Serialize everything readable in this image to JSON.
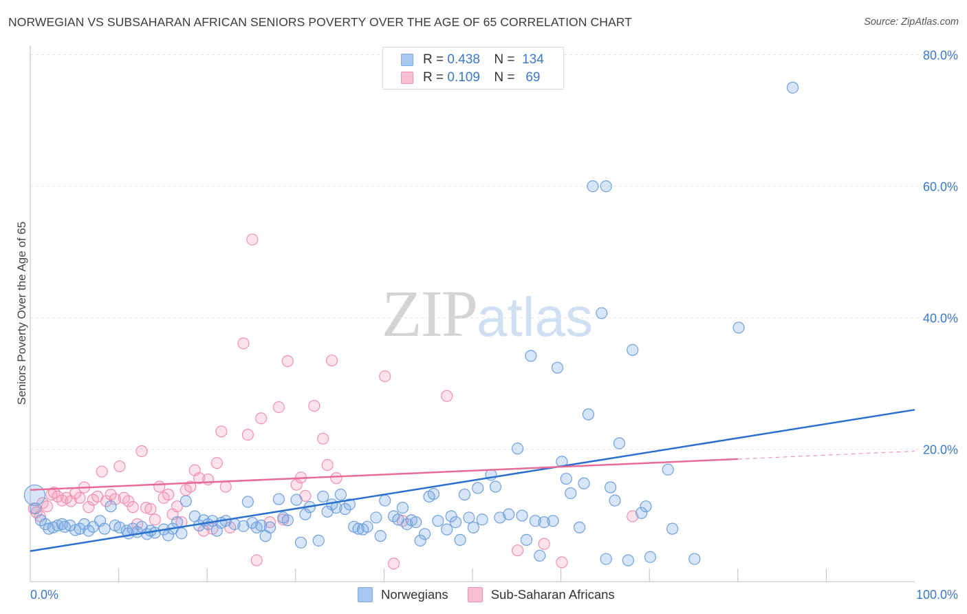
{
  "header": {
    "title": "NORWEGIAN VS SUBSAHARAN AFRICAN SENIORS POVERTY OVER THE AGE OF 65 CORRELATION CHART",
    "source": "Source: ZipAtlas.com"
  },
  "watermark": {
    "zip": "ZIP",
    "atlas": "atlas"
  },
  "legend": {
    "rows": [
      {
        "r_label": "R =",
        "r_value": "0.438",
        "n_label": "N =",
        "n_value": "134",
        "color": "#a8c8f0",
        "border": "#7aa8e0"
      },
      {
        "r_label": "R =",
        "r_value": "0.109",
        "n_label": "N =",
        "n_value": "69",
        "color": "#f8c0d0",
        "border": "#f090b0"
      }
    ]
  },
  "bottom_legend": [
    {
      "label": "Norwegians",
      "color": "#a8c8f0",
      "border": "#7aa8e0"
    },
    {
      "label": "Sub-Saharan Africans",
      "color": "#f8c0d0",
      "border": "#f090b0"
    }
  ],
  "colors": {
    "blue_fill": "rgba(120,168,230,0.30)",
    "blue_stroke": "#6fa0dc",
    "blue_line": "#2a6fd0",
    "pink_fill": "rgba(245,160,185,0.30)",
    "pink_stroke": "#ef90ae",
    "pink_line": "#e86a97",
    "tick_label": "#3a78c8",
    "grid": "#e2e2e2"
  },
  "chart_data": {
    "type": "scatter",
    "title": "NORWEGIAN VS SUBSAHARAN AFRICAN SENIORS POVERTY OVER THE AGE OF 65 CORRELATION CHART",
    "xlabel": "",
    "ylabel": "Seniors Poverty Over the Age of 65",
    "xlim": [
      0,
      100
    ],
    "ylim": [
      0,
      80
    ],
    "x_tick_labels": [
      {
        "value": 0,
        "label": "0.0%"
      },
      {
        "value": 100,
        "label": "100.0%"
      }
    ],
    "y_tick_labels": [
      {
        "value": 20,
        "label": "20.0%"
      },
      {
        "value": 40,
        "label": "40.0%"
      },
      {
        "value": 60,
        "label": "60.0%"
      },
      {
        "value": 80,
        "label": "80.0%"
      }
    ],
    "series": [
      {
        "name": "Norwegians",
        "trend": {
          "x0": 0,
          "y0": 4.5,
          "x1": 100,
          "y1": 26
        },
        "points": [
          [
            0.5,
            13
          ],
          [
            0.6,
            11
          ],
          [
            1.2,
            9.2
          ],
          [
            1.7,
            8.6
          ],
          [
            2.1,
            7.9
          ],
          [
            2.6,
            8.1
          ],
          [
            3.1,
            8.4
          ],
          [
            3.6,
            8.6
          ],
          [
            3.9,
            8.2
          ],
          [
            4.5,
            8.4
          ],
          [
            5.1,
            7.7
          ],
          [
            5.6,
            7.9
          ],
          [
            6.1,
            8.6
          ],
          [
            6.6,
            7.6
          ],
          [
            7.1,
            8.2
          ],
          [
            7.9,
            9.1
          ],
          [
            8.4,
            7.9
          ],
          [
            9.1,
            11.3
          ],
          [
            9.6,
            8.4
          ],
          [
            10.1,
            8.1
          ],
          [
            10.9,
            7.6
          ],
          [
            11.1,
            7.2
          ],
          [
            11.6,
            7.9
          ],
          [
            12.1,
            7.4
          ],
          [
            12.6,
            8.2
          ],
          [
            13.2,
            7.1
          ],
          [
            13.6,
            7.6
          ],
          [
            14.1,
            7.3
          ],
          [
            15.1,
            7.8
          ],
          [
            15.6,
            6.9
          ],
          [
            16.1,
            7.9
          ],
          [
            16.6,
            8.9
          ],
          [
            17.1,
            7.2
          ],
          [
            17.6,
            12.1
          ],
          [
            18.6,
            9.8
          ],
          [
            19.1,
            8.4
          ],
          [
            19.6,
            9.2
          ],
          [
            20.1,
            8.6
          ],
          [
            20.6,
            9.1
          ],
          [
            21.1,
            7.6
          ],
          [
            21.6,
            8.8
          ],
          [
            22.1,
            9.1
          ],
          [
            23.1,
            8.6
          ],
          [
            24.1,
            8.3
          ],
          [
            24.6,
            12
          ],
          [
            25.1,
            8.8
          ],
          [
            25.6,
            8.1
          ],
          [
            26.1,
            8.4
          ],
          [
            26.6,
            6.8
          ],
          [
            27.1,
            8.1
          ],
          [
            28.1,
            12.4
          ],
          [
            28.6,
            9.6
          ],
          [
            29.1,
            9.2
          ],
          [
            30.1,
            12.3
          ],
          [
            30.6,
            5.8
          ],
          [
            31.1,
            10.1
          ],
          [
            31.6,
            11.2
          ],
          [
            32.6,
            6.1
          ],
          [
            33.1,
            12.8
          ],
          [
            33.6,
            10.5
          ],
          [
            34.1,
            11.6
          ],
          [
            34.6,
            11.1
          ],
          [
            35.1,
            13.1
          ],
          [
            35.6,
            10.9
          ],
          [
            36.1,
            11.6
          ],
          [
            36.6,
            8.2
          ],
          [
            37.1,
            7.9
          ],
          [
            37.6,
            7.8
          ],
          [
            38.1,
            8.2
          ],
          [
            39.1,
            9.6
          ],
          [
            39.6,
            6.8
          ],
          [
            40.1,
            12.2
          ],
          [
            41.1,
            9.8
          ],
          [
            41.6,
            9.3
          ],
          [
            42.1,
            11.1
          ],
          [
            42.6,
            8.6
          ],
          [
            43.1,
            9.2
          ],
          [
            43.6,
            8.9
          ],
          [
            44.1,
            6.1
          ],
          [
            44.6,
            7.1
          ],
          [
            45.1,
            12.8
          ],
          [
            45.6,
            13.2
          ],
          [
            46.1,
            9.1
          ],
          [
            47.1,
            7.8
          ],
          [
            47.6,
            9.8
          ],
          [
            48.1,
            8.9
          ],
          [
            48.6,
            6.2
          ],
          [
            49.1,
            13.1
          ],
          [
            49.6,
            9.6
          ],
          [
            50.1,
            8.1
          ],
          [
            50.6,
            14.1
          ],
          [
            51.1,
            9.3
          ],
          [
            52.1,
            16.1
          ],
          [
            52.6,
            14.3
          ],
          [
            53.1,
            9.6
          ],
          [
            54.1,
            10.1
          ],
          [
            55.1,
            20.1
          ],
          [
            55.6,
            9.9
          ],
          [
            56.1,
            6.2
          ],
          [
            56.6,
            34.2
          ],
          [
            57.1,
            9.1
          ],
          [
            57.6,
            3.8
          ],
          [
            58.1,
            8.9
          ],
          [
            59.1,
            9.1
          ],
          [
            59.6,
            32.4
          ],
          [
            60.1,
            18.1
          ],
          [
            60.6,
            15.5
          ],
          [
            61.1,
            13.3
          ],
          [
            62.1,
            8.1
          ],
          [
            62.6,
            14.8
          ],
          [
            63.1,
            25.3
          ],
          [
            64.6,
            40.7
          ],
          [
            65.1,
            3.3
          ],
          [
            65.6,
            14.2
          ],
          [
            66.1,
            12.2
          ],
          [
            66.6,
            20.9
          ],
          [
            67.6,
            3.1
          ],
          [
            68.1,
            35.1
          ],
          [
            69.1,
            10.3
          ],
          [
            69.6,
            11.3
          ],
          [
            70.1,
            3.6
          ],
          [
            72.1,
            16.9
          ],
          [
            72.6,
            7.9
          ],
          [
            75.1,
            3.3
          ],
          [
            80.1,
            38.5
          ],
          [
            86.2,
            75
          ]
        ],
        "extra_points": [
          [
            63.6,
            60
          ],
          [
            65.1,
            60
          ]
        ]
      },
      {
        "name": "Sub-Saharan Africans",
        "trend": {
          "x0": 0,
          "y0": 13.8,
          "x1": 80,
          "y1": 18.5,
          "dash_to_x": 100,
          "dash_to_y": 19.7
        },
        "points": [
          [
            0.4,
            11
          ],
          [
            0.7,
            10.4
          ],
          [
            1.1,
            9.8
          ],
          [
            1.4,
            11.8
          ],
          [
            1.9,
            11.3
          ],
          [
            2.4,
            13.1
          ],
          [
            2.7,
            13.4
          ],
          [
            3.1,
            12.8
          ],
          [
            3.6,
            12.2
          ],
          [
            4.1,
            12.6
          ],
          [
            4.6,
            12.1
          ],
          [
            5.1,
            13.3
          ],
          [
            5.6,
            12.6
          ],
          [
            6.1,
            14.2
          ],
          [
            6.6,
            11.2
          ],
          [
            7.1,
            12.3
          ],
          [
            7.6,
            12.8
          ],
          [
            8.1,
            16.6
          ],
          [
            8.6,
            12.1
          ],
          [
            9.1,
            13.1
          ],
          [
            9.6,
            12.4
          ],
          [
            10.1,
            17.4
          ],
          [
            10.6,
            12.6
          ],
          [
            11.1,
            12.1
          ],
          [
            11.6,
            11.2
          ],
          [
            12.1,
            8.6
          ],
          [
            12.6,
            19.7
          ],
          [
            13.1,
            11.1
          ],
          [
            13.6,
            10.9
          ],
          [
            14.1,
            9.3
          ],
          [
            14.6,
            14.3
          ],
          [
            15.1,
            12.6
          ],
          [
            15.6,
            13.1
          ],
          [
            16.1,
            10.1
          ],
          [
            16.6,
            11.3
          ],
          [
            17.1,
            8.9
          ],
          [
            17.6,
            13.8
          ],
          [
            18.1,
            14.3
          ],
          [
            18.6,
            16.8
          ],
          [
            19.1,
            15.6
          ],
          [
            19.6,
            7.6
          ],
          [
            20.1,
            15.4
          ],
          [
            20.6,
            7.9
          ],
          [
            21.1,
            17.9
          ],
          [
            21.6,
            22.7
          ],
          [
            22.1,
            14.3
          ],
          [
            22.6,
            8.1
          ],
          [
            24.1,
            36.1
          ],
          [
            24.6,
            22.2
          ],
          [
            25.1,
            51.9
          ],
          [
            25.6,
            3.1
          ],
          [
            26.1,
            24.7
          ],
          [
            27.1,
            8.9
          ],
          [
            28.1,
            26.4
          ],
          [
            28.6,
            9.3
          ],
          [
            29.1,
            33.4
          ],
          [
            30.1,
            14.6
          ],
          [
            30.6,
            15.7
          ],
          [
            31.1,
            12.9
          ],
          [
            32.1,
            26.6
          ],
          [
            33.1,
            21.6
          ],
          [
            33.6,
            17.6
          ],
          [
            34.1,
            33.5
          ],
          [
            34.6,
            15.6
          ],
          [
            40.1,
            31.1
          ],
          [
            41.1,
            2.6
          ],
          [
            42.1,
            9.1
          ],
          [
            47.1,
            28.1
          ],
          [
            55.1,
            4.6
          ],
          [
            58.1,
            5.6
          ],
          [
            60.1,
            2.8
          ],
          [
            68.1,
            9.8
          ]
        ]
      }
    ]
  }
}
